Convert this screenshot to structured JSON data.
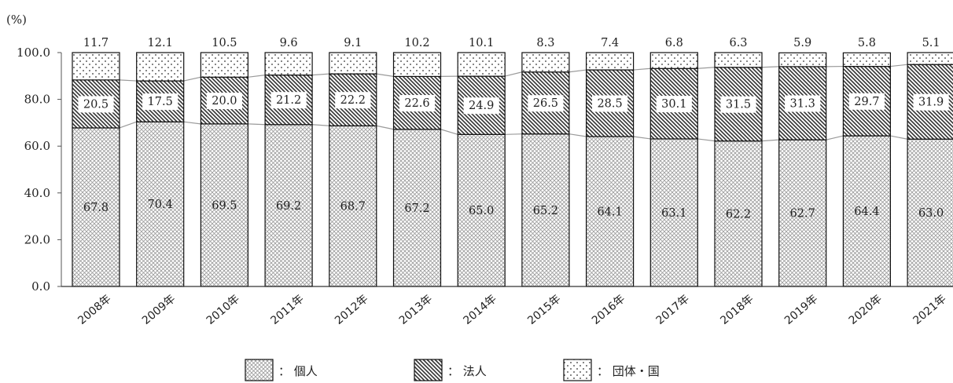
{
  "chart_data": {
    "type": "bar",
    "stacked": true,
    "unit_label": "(%)",
    "ylim": [
      0,
      100
    ],
    "y_ticks": [
      "0.0",
      "20.0",
      "40.0",
      "60.0",
      "80.0",
      "100.0"
    ],
    "categories": [
      "2008年",
      "2009年",
      "2010年",
      "2011年",
      "2012年",
      "2013年",
      "2014年",
      "2015年",
      "2016年",
      "2017年",
      "2018年",
      "2019年",
      "2020年",
      "2021年"
    ],
    "series": [
      {
        "name": "個人",
        "pattern": "crosshatch",
        "values": [
          67.8,
          70.4,
          69.5,
          69.2,
          68.7,
          67.2,
          65.0,
          65.2,
          64.1,
          63.1,
          62.2,
          62.7,
          64.4,
          63.0
        ],
        "labels": [
          "67.8",
          "70.4",
          "69.5",
          "69.2",
          "68.7",
          "67.2",
          "65.0",
          "65.2",
          "64.1",
          "63.1",
          "62.2",
          "62.7",
          "64.4",
          "63.0"
        ]
      },
      {
        "name": "法人",
        "pattern": "diagonal",
        "values": [
          20.5,
          17.5,
          20.0,
          21.2,
          22.2,
          22.6,
          24.9,
          26.5,
          28.5,
          30.1,
          31.5,
          31.3,
          29.7,
          31.9
        ],
        "labels": [
          "20.5",
          "17.5",
          "20.0",
          "21.2",
          "22.2",
          "22.6",
          "24.9",
          "26.5",
          "28.5",
          "30.1",
          "31.5",
          "31.3",
          "29.7",
          "31.9"
        ]
      },
      {
        "name": "団体・国",
        "pattern": "dots",
        "values": [
          11.7,
          12.1,
          10.5,
          9.6,
          9.1,
          10.2,
          10.1,
          8.3,
          7.4,
          6.8,
          6.3,
          5.9,
          5.8,
          5.1
        ],
        "labels": [
          "11.7",
          "12.1",
          "10.5",
          "9.6",
          "9.1",
          "10.2",
          "10.1",
          "8.3",
          "7.4",
          "6.8",
          "6.3",
          "5.9",
          "5.8",
          "5.1"
        ]
      }
    ],
    "legend": {
      "position": "bottom",
      "items": [
        {
          "swatch": "crosshatch",
          "text": "： 個人"
        },
        {
          "swatch": "diagonal",
          "text": "： 法人"
        },
        {
          "swatch": "dots",
          "text": "： 団体・国"
        }
      ]
    },
    "connector_lines": true,
    "grid": false
  }
}
